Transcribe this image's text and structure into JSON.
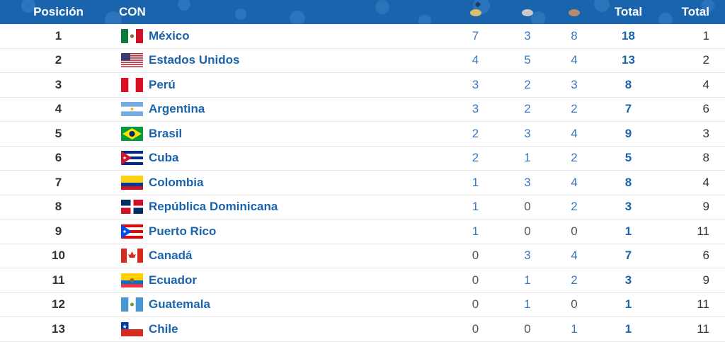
{
  "header": {
    "pos": "Posición",
    "con": "CON",
    "total1": "Total",
    "total2": "Total",
    "medal_colors": {
      "gold": "#d8bf6a",
      "silver": "#c9c9c9",
      "bronze": "#b98b6c"
    },
    "sort_icon": "sort-icon"
  },
  "rows": [
    {
      "pos": "1",
      "name": "México",
      "flag": "mexico",
      "g": "7",
      "s": "3",
      "b": "8",
      "total": "18",
      "total2": "1"
    },
    {
      "pos": "2",
      "name": "Estados Unidos",
      "flag": "usa",
      "g": "4",
      "s": "5",
      "b": "4",
      "total": "13",
      "total2": "2"
    },
    {
      "pos": "3",
      "name": "Perú",
      "flag": "peru",
      "g": "3",
      "s": "2",
      "b": "3",
      "total": "8",
      "total2": "4"
    },
    {
      "pos": "4",
      "name": "Argentina",
      "flag": "argentina",
      "g": "3",
      "s": "2",
      "b": "2",
      "total": "7",
      "total2": "6"
    },
    {
      "pos": "5",
      "name": "Brasil",
      "flag": "brasil",
      "g": "2",
      "s": "3",
      "b": "4",
      "total": "9",
      "total2": "3"
    },
    {
      "pos": "6",
      "name": "Cuba",
      "flag": "cuba",
      "g": "2",
      "s": "1",
      "b": "2",
      "total": "5",
      "total2": "8"
    },
    {
      "pos": "7",
      "name": "Colombia",
      "flag": "colombia",
      "g": "1",
      "s": "3",
      "b": "4",
      "total": "8",
      "total2": "4"
    },
    {
      "pos": "8",
      "name": "República Dominicana",
      "flag": "dominicana",
      "g": "1",
      "s": "0",
      "b": "2",
      "total": "3",
      "total2": "9"
    },
    {
      "pos": "9",
      "name": "Puerto Rico",
      "flag": "puertorico",
      "g": "1",
      "s": "0",
      "b": "0",
      "total": "1",
      "total2": "11"
    },
    {
      "pos": "10",
      "name": "Canadá",
      "flag": "canada",
      "g": "0",
      "s": "3",
      "b": "4",
      "total": "7",
      "total2": "6"
    },
    {
      "pos": "11",
      "name": "Ecuador",
      "flag": "ecuador",
      "g": "0",
      "s": "1",
      "b": "2",
      "total": "3",
      "total2": "9"
    },
    {
      "pos": "12",
      "name": "Guatemala",
      "flag": "guatemala",
      "g": "0",
      "s": "1",
      "b": "0",
      "total": "1",
      "total2": "11"
    },
    {
      "pos": "13",
      "name": "Chile",
      "flag": "chile",
      "g": "0",
      "s": "0",
      "b": "1",
      "total": "1",
      "total2": "11"
    }
  ]
}
